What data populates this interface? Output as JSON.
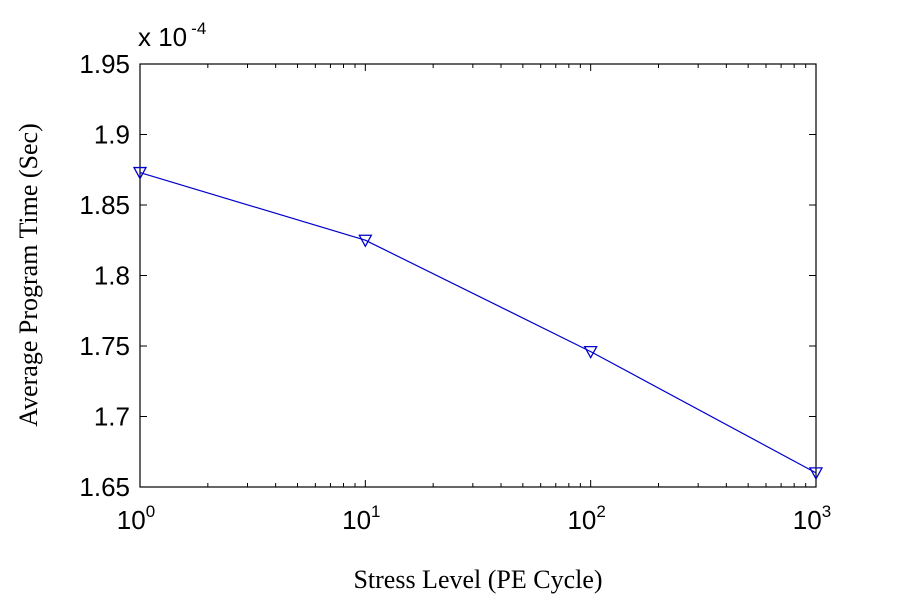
{
  "chart_data": {
    "type": "line",
    "x_scale": "log",
    "x": [
      1,
      10,
      100,
      1000
    ],
    "series": [
      {
        "values": [
          1.873,
          1.825,
          1.746,
          1.66
        ],
        "color": "#0000cc",
        "marker": "triangle-down-open"
      }
    ],
    "xlabel": "Stress Level (PE Cycle)",
    "ylabel": "Average Program Time (Sec)",
    "xlim": [
      1,
      1000
    ],
    "ylim": [
      1.65,
      1.95
    ],
    "x_ticks": [
      {
        "base": "10",
        "exp": "0"
      },
      {
        "base": "10",
        "exp": "1"
      },
      {
        "base": "10",
        "exp": "2"
      },
      {
        "base": "10",
        "exp": "3"
      }
    ],
    "y_ticks": [
      "1.65",
      "1.7",
      "1.75",
      "1.8",
      "1.85",
      "1.9",
      "1.95"
    ],
    "y_multiplier": {
      "base": "x 10",
      "exp": "-4"
    },
    "grid": false,
    "legend": "none"
  }
}
